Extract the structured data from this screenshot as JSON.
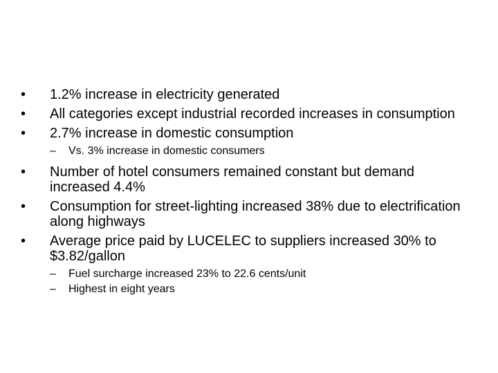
{
  "bullets": [
    {
      "marker": "•",
      "text": "1.2% increase in electricity generated"
    },
    {
      "marker": "•",
      "text": "All categories except industrial recorded increases in consumption"
    },
    {
      "marker": "•",
      "text": "2.7% increase in domestic consumption",
      "sub": [
        {
          "marker": "–",
          "text": "Vs. 3% increase in domestic consumers"
        }
      ]
    },
    {
      "marker": "•",
      "text": "Number of hotel consumers remained constant but demand increased 4.4%"
    },
    {
      "marker": "•",
      "text": "Consumption for street-lighting increased 38% due to electrification along highways"
    },
    {
      "marker": "•",
      "text": "Average price paid by LUCELEC to suppliers increased 30% to $3.82/gallon",
      "sub": [
        {
          "marker": "–",
          "text": "Fuel surcharge increased 23% to 22.6 cents/unit"
        },
        {
          "marker": "–",
          "text": "Highest in eight years"
        }
      ]
    }
  ]
}
